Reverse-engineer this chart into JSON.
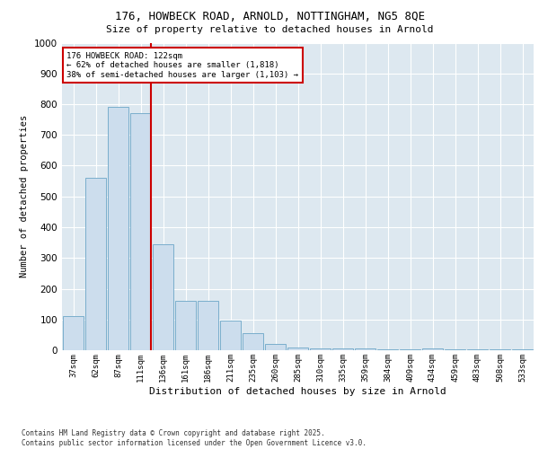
{
  "title1": "176, HOWBECK ROAD, ARNOLD, NOTTINGHAM, NG5 8QE",
  "title2": "Size of property relative to detached houses in Arnold",
  "xlabel": "Distribution of detached houses by size in Arnold",
  "ylabel": "Number of detached properties",
  "categories": [
    "37sqm",
    "62sqm",
    "87sqm",
    "111sqm",
    "136sqm",
    "161sqm",
    "186sqm",
    "211sqm",
    "235sqm",
    "260sqm",
    "285sqm",
    "310sqm",
    "335sqm",
    "359sqm",
    "384sqm",
    "409sqm",
    "434sqm",
    "459sqm",
    "483sqm",
    "508sqm",
    "533sqm"
  ],
  "values": [
    110,
    560,
    790,
    770,
    345,
    160,
    160,
    95,
    55,
    20,
    10,
    5,
    5,
    5,
    2,
    2,
    5,
    2,
    2,
    2,
    2
  ],
  "bar_color": "#ccdded",
  "bar_edge_color": "#7aaecc",
  "background_color": "#dde8f0",
  "grid_color": "#ffffff",
  "annotation_box_color": "#cc0000",
  "annotation_text_line1": "176 HOWBECK ROAD: 122sqm",
  "annotation_text_line2": "← 62% of detached houses are smaller (1,818)",
  "annotation_text_line3": "38% of semi-detached houses are larger (1,103) →",
  "footer1": "Contains HM Land Registry data © Crown copyright and database right 2025.",
  "footer2": "Contains public sector information licensed under the Open Government Licence v3.0.",
  "ylim": [
    0,
    1000
  ],
  "yticks": [
    0,
    100,
    200,
    300,
    400,
    500,
    600,
    700,
    800,
    900,
    1000
  ],
  "red_line_x": 3.44
}
